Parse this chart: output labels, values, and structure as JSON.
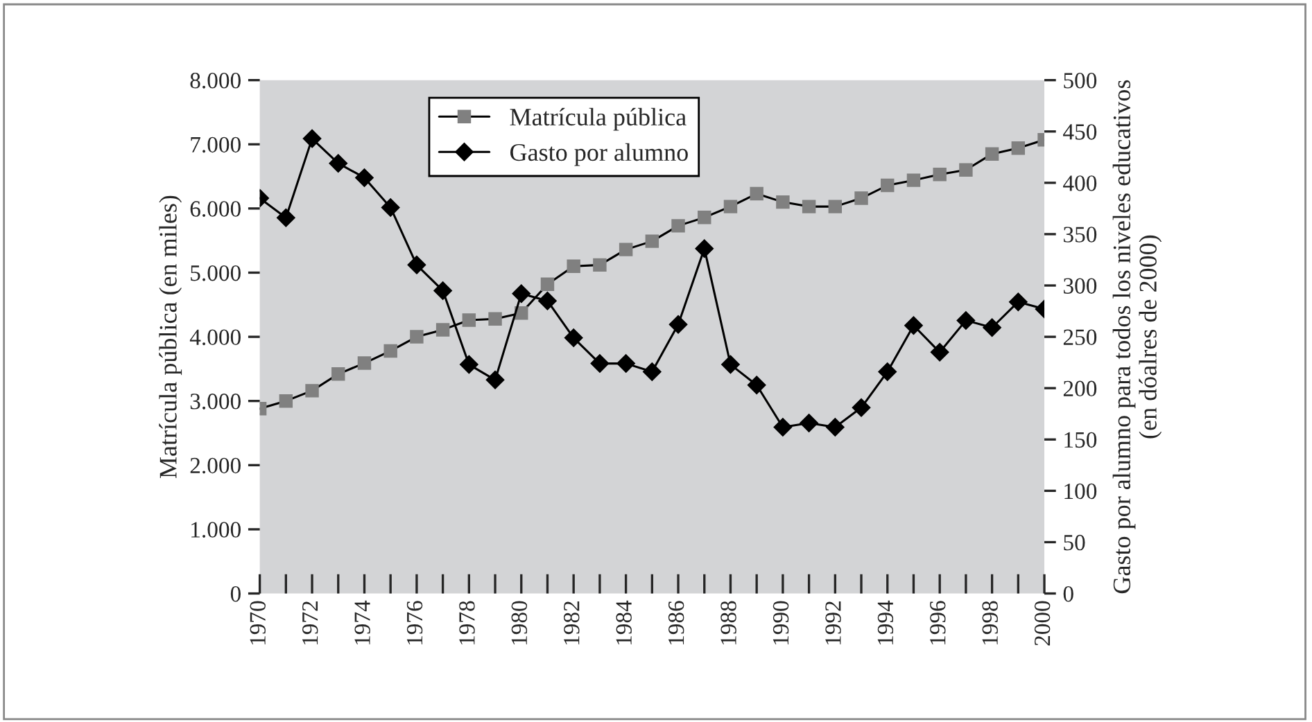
{
  "chart_data": {
    "type": "line",
    "ylabel": "Matrícula pública (en miles)",
    "y2label": "Gasto por alumno para todos los niveles educativos\n(en dóalres de 2000)",
    "x": [
      1970,
      1971,
      1972,
      1973,
      1974,
      1975,
      1976,
      1977,
      1978,
      1979,
      1980,
      1981,
      1982,
      1983,
      1984,
      1985,
      1986,
      1987,
      1988,
      1989,
      1990,
      1991,
      1992,
      1993,
      1994,
      1995,
      1996,
      1997,
      1998,
      1999,
      2000
    ],
    "series": [
      {
        "name": "Matrícula pública",
        "color": "#808080",
        "marker": "square",
        "values": [
          2880,
          3000,
          3160,
          3420,
          3590,
          3780,
          4000,
          4110,
          4260,
          4280,
          4370,
          4820,
          5100,
          5120,
          5360,
          5490,
          5730,
          5860,
          6030,
          6230,
          6100,
          6030,
          6030,
          6160,
          6360,
          6440,
          6530,
          6600,
          6850,
          6940,
          7070
        ]
      },
      {
        "name": "Gasto por alumno",
        "color": "#000000",
        "marker": "diamond",
        "axis": "y2",
        "values": [
          385,
          366,
          443,
          419,
          405,
          376,
          320,
          295,
          223,
          208,
          292,
          285,
          249,
          224,
          224,
          216,
          262,
          336,
          223,
          203,
          162,
          166,
          162,
          181,
          216,
          261,
          235,
          266,
          259,
          284,
          277
        ]
      }
    ],
    "xlim": [
      1970,
      2000
    ],
    "xticks": [
      1970,
      {
        "value": 1971,
        "label": null
      },
      1972,
      {
        "value": 1973,
        "label": null
      },
      1974,
      {
        "value": 1975,
        "label": null
      },
      1976,
      {
        "value": 1977,
        "label": null
      },
      1978,
      {
        "value": 1979,
        "label": null
      },
      1980,
      {
        "value": 1981,
        "label": null
      },
      1982,
      {
        "value": 1983,
        "label": null
      },
      1984,
      {
        "value": 1985,
        "label": null
      },
      1986,
      {
        "value": 1987,
        "label": null
      },
      1988,
      {
        "value": 1989,
        "label": null
      },
      1990,
      {
        "value": 1991,
        "label": null
      },
      1992,
      {
        "value": 1993,
        "label": null
      },
      1994,
      {
        "value": 1995,
        "label": null
      },
      1996,
      {
        "value": 1997,
        "label": null
      },
      1998,
      {
        "value": 1999,
        "label": null
      },
      2000
    ],
    "ylim": [
      0,
      8000
    ],
    "yticks": [
      0,
      {
        "value": 1000,
        "label": "1.000"
      },
      {
        "value": 2000,
        "label": "2.000"
      },
      {
        "value": 3000,
        "label": "3.000"
      },
      {
        "value": 4000,
        "label": "4.000"
      },
      {
        "value": 5000,
        "label": "5.000"
      },
      {
        "value": 6000,
        "label": "6.000"
      },
      {
        "value": 7000,
        "label": "7.000"
      },
      {
        "value": 8000,
        "label": "8.000"
      }
    ],
    "y2lim": [
      0,
      500
    ],
    "y2ticks": [
      0,
      50,
      100,
      150,
      200,
      250,
      300,
      350,
      400,
      450,
      500
    ],
    "grid": false,
    "legend": "top left"
  }
}
